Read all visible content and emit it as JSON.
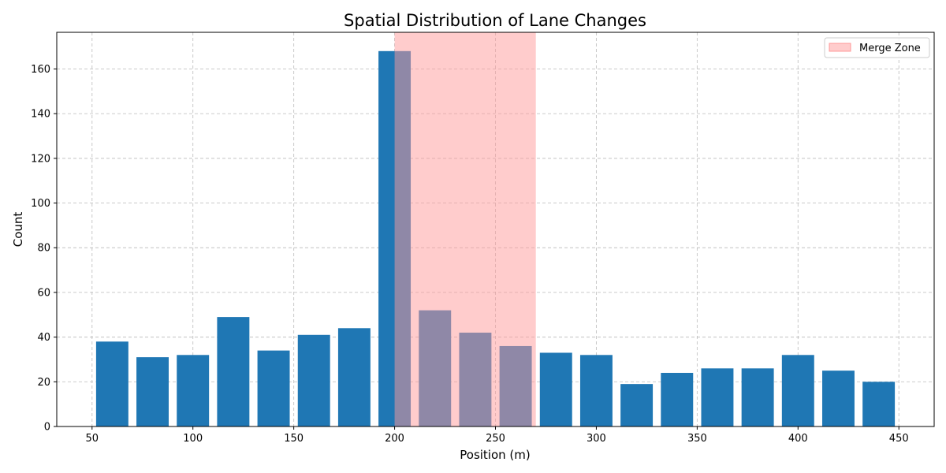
{
  "chart_data": {
    "type": "bar",
    "title": "Spatial Distribution of Lane Changes",
    "xlabel": "Position (m)",
    "ylabel": "Count",
    "xlim": [
      32.5,
      467.5
    ],
    "ylim": [
      0,
      176.4
    ],
    "xticks": [
      50,
      100,
      150,
      200,
      250,
      300,
      350,
      400,
      450
    ],
    "yticks": [
      0,
      20,
      40,
      60,
      80,
      100,
      120,
      140,
      160
    ],
    "bar_width": 16,
    "x": [
      60,
      80,
      100,
      120,
      140,
      160,
      180,
      200,
      220,
      240,
      260,
      280,
      300,
      320,
      340,
      360,
      380,
      400,
      420,
      440
    ],
    "values": [
      38,
      31,
      32,
      49,
      34,
      41,
      44,
      168,
      52,
      42,
      36,
      33,
      32,
      19,
      24,
      26,
      26,
      32,
      25,
      20
    ],
    "bar_color": "#1f77b4",
    "shaded_region": {
      "label": "Merge Zone",
      "x_range": [
        200,
        270
      ],
      "color": "#ff9999",
      "alpha": 0.5
    },
    "grid": true,
    "legend_position": "top-right"
  }
}
